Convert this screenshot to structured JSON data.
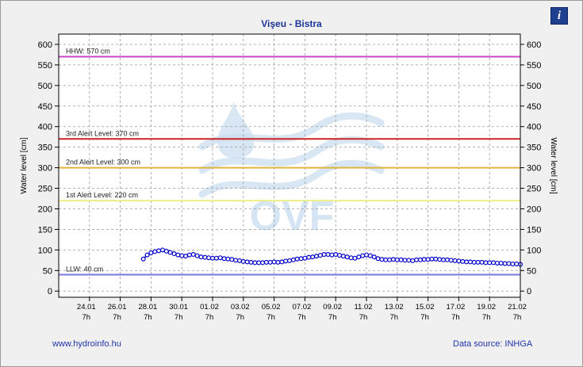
{
  "header": {
    "title": "Vişeu - Bistra",
    "info_icon": "info-icon",
    "info_label": "i"
  },
  "footer": {
    "link": "www.hydroinfo.hu",
    "source": "Data source: INHGA"
  },
  "watermark": {
    "text": "OVF",
    "color": "#c9ddf0"
  },
  "chart_data": {
    "type": "line",
    "title": "Vişeu - Bistra",
    "ylabel_left": "Water level [cm]",
    "ylabel_right": "Water level [cm]",
    "ylim": [
      -15,
      625
    ],
    "yticks": [
      0,
      50,
      100,
      150,
      200,
      250,
      300,
      350,
      400,
      450,
      500,
      550,
      600
    ],
    "ytick_labels": [
      "0",
      "50",
      "100",
      "150",
      "200",
      "250",
      "300",
      "350",
      "400",
      "450",
      "500",
      "550",
      "600"
    ],
    "xlim_days": [
      0,
      30
    ],
    "xticks": [
      {
        "day": 2,
        "date": "24.01",
        "hour": "7h"
      },
      {
        "day": 4,
        "date": "26.01",
        "hour": "7h"
      },
      {
        "day": 6,
        "date": "28.01",
        "hour": "7h"
      },
      {
        "day": 8,
        "date": "30.01",
        "hour": "7h"
      },
      {
        "day": 10,
        "date": "01.02",
        "hour": "7h"
      },
      {
        "day": 12,
        "date": "03.02",
        "hour": "7h"
      },
      {
        "day": 14,
        "date": "05.02",
        "hour": "7h"
      },
      {
        "day": 16,
        "date": "07.02",
        "hour": "7h"
      },
      {
        "day": 18,
        "date": "09.02",
        "hour": "7h"
      },
      {
        "day": 20,
        "date": "11.02",
        "hour": "7h"
      },
      {
        "day": 22,
        "date": "13.02",
        "hour": "7h"
      },
      {
        "day": 24,
        "date": "15.02",
        "hour": "7h"
      },
      {
        "day": 26,
        "date": "17.02",
        "hour": "7h"
      },
      {
        "day": 28,
        "date": "19.02",
        "hour": "7h"
      },
      {
        "day": 30,
        "date": "21.02",
        "hour": "7h"
      }
    ],
    "threshold_lines": [
      {
        "label": "HHW: 570 cm",
        "value": 570,
        "color": "#cc44cc"
      },
      {
        "label": "3rd Alert Level: 370 cm",
        "value": 370,
        "color": "#cc2222"
      },
      {
        "label": "2nd Alert Level: 300 cm",
        "value": 300,
        "color": "#e0b43c"
      },
      {
        "label": "1st Alert Level: 220 cm",
        "value": 220,
        "color": "#eeee88"
      },
      {
        "label": "LLW: 40 cm",
        "value": 40,
        "color": "#7777dd"
      }
    ],
    "grid": true,
    "series": [
      {
        "color": "#0000cc",
        "points": [
          [
            5.5,
            78
          ],
          [
            5.75,
            88
          ],
          [
            6.0,
            93
          ],
          [
            6.25,
            96
          ],
          [
            6.5,
            98
          ],
          [
            6.75,
            100
          ],
          [
            7.0,
            97
          ],
          [
            7.25,
            94
          ],
          [
            7.5,
            91
          ],
          [
            7.75,
            88
          ],
          [
            8.0,
            86
          ],
          [
            8.25,
            85
          ],
          [
            8.5,
            88
          ],
          [
            8.75,
            89
          ],
          [
            9.0,
            86
          ],
          [
            9.25,
            83
          ],
          [
            9.5,
            82
          ],
          [
            9.75,
            81
          ],
          [
            10.0,
            80
          ],
          [
            10.25,
            80
          ],
          [
            10.5,
            81
          ],
          [
            10.75,
            79
          ],
          [
            11.0,
            78
          ],
          [
            11.25,
            77
          ],
          [
            11.5,
            75
          ],
          [
            11.75,
            74
          ],
          [
            12.0,
            72
          ],
          [
            12.25,
            71
          ],
          [
            12.5,
            70
          ],
          [
            12.75,
            69
          ],
          [
            13.0,
            69
          ],
          [
            13.25,
            69
          ],
          [
            13.5,
            70
          ],
          [
            13.75,
            70
          ],
          [
            14.0,
            71
          ],
          [
            14.25,
            70
          ],
          [
            14.5,
            71
          ],
          [
            14.75,
            73
          ],
          [
            15.0,
            74
          ],
          [
            15.25,
            76
          ],
          [
            15.5,
            78
          ],
          [
            15.75,
            79
          ],
          [
            16.0,
            80
          ],
          [
            16.25,
            82
          ],
          [
            16.5,
            83
          ],
          [
            16.75,
            85
          ],
          [
            17.0,
            87
          ],
          [
            17.25,
            89
          ],
          [
            17.5,
            89
          ],
          [
            17.75,
            88
          ],
          [
            18.0,
            89
          ],
          [
            18.25,
            87
          ],
          [
            18.5,
            85
          ],
          [
            18.75,
            83
          ],
          [
            19.0,
            81
          ],
          [
            19.25,
            80
          ],
          [
            19.5,
            83
          ],
          [
            19.75,
            86
          ],
          [
            20.0,
            88
          ],
          [
            20.25,
            86
          ],
          [
            20.5,
            83
          ],
          [
            20.75,
            79
          ],
          [
            21.0,
            77
          ],
          [
            21.25,
            76
          ],
          [
            21.5,
            76
          ],
          [
            21.75,
            77
          ],
          [
            22.0,
            76
          ],
          [
            22.25,
            76
          ],
          [
            22.5,
            75
          ],
          [
            22.75,
            75
          ],
          [
            23.0,
            74
          ],
          [
            23.25,
            76
          ],
          [
            23.5,
            76
          ],
          [
            23.75,
            77
          ],
          [
            24.0,
            77
          ],
          [
            24.25,
            78
          ],
          [
            24.5,
            78
          ],
          [
            24.75,
            77
          ],
          [
            25.0,
            76
          ],
          [
            25.25,
            76
          ],
          [
            25.5,
            75
          ],
          [
            25.75,
            74
          ],
          [
            26.0,
            73
          ],
          [
            26.25,
            72
          ],
          [
            26.5,
            71
          ],
          [
            26.75,
            71
          ],
          [
            27.0,
            70
          ],
          [
            27.25,
            70
          ],
          [
            27.5,
            70
          ],
          [
            27.75,
            69
          ],
          [
            28.0,
            69
          ],
          [
            28.25,
            69
          ],
          [
            28.5,
            68
          ],
          [
            28.75,
            68
          ],
          [
            29.0,
            67
          ],
          [
            29.25,
            67
          ],
          [
            29.5,
            66
          ],
          [
            29.75,
            66
          ],
          [
            30.0,
            65
          ]
        ]
      }
    ]
  }
}
